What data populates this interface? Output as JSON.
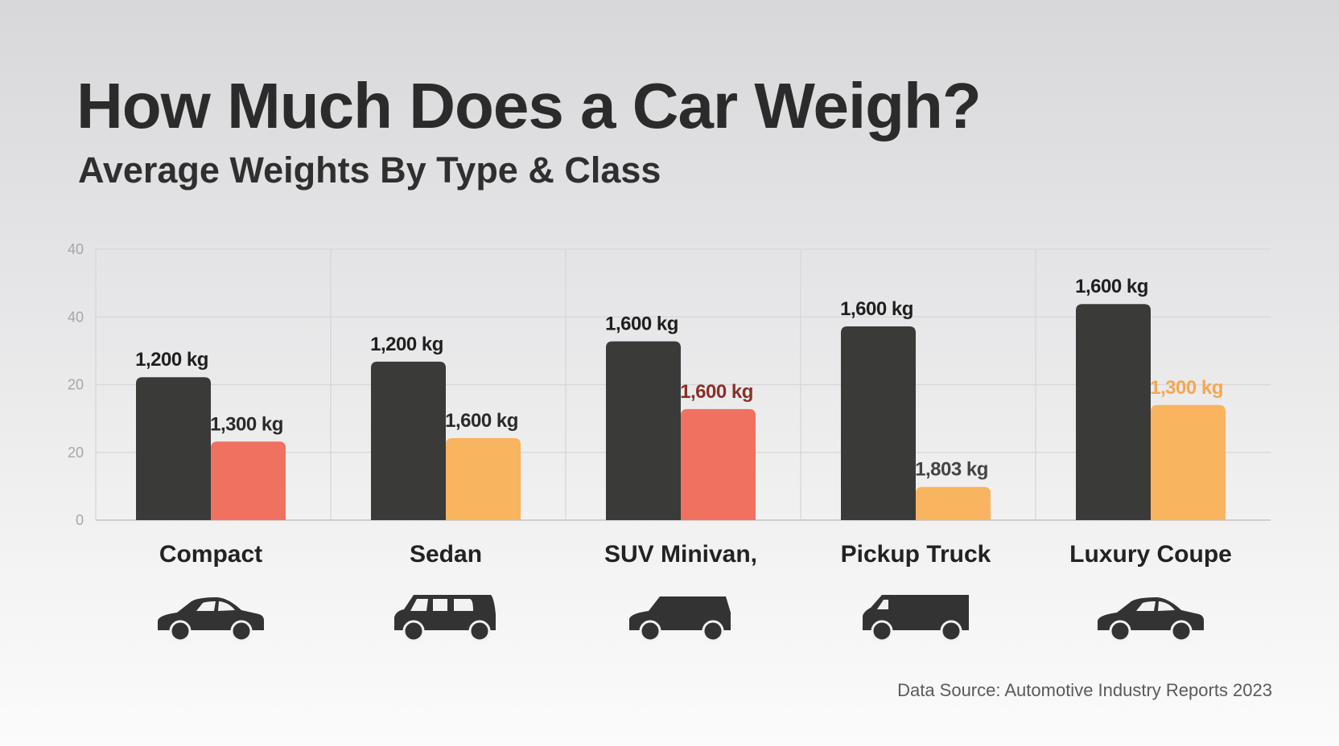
{
  "chart_data": {
    "type": "bar",
    "title": "How Much Does a Car Weigh?",
    "subtitle": "Average Weights By Type & Class",
    "xlabel": "",
    "ylabel": "",
    "ylim": [
      0,
      40
    ],
    "y_tick_labels": [
      "0",
      "20",
      "20",
      "40",
      "40"
    ],
    "grid": true,
    "categories": [
      "Compact",
      "Sedan",
      "SUV Minivan,",
      "Pickup Truck",
      "Luxury Coupe"
    ],
    "icons": [
      "sedan-car-icon",
      "wagon-car-icon",
      "suv-car-icon",
      "van-icon",
      "sedan-car-icon"
    ],
    "series": [
      {
        "values": [
          21.1,
          23.4,
          26.4,
          28.6,
          31.9
        ],
        "labels": [
          "1,200 kg",
          "1,200 kg",
          "1,600 kg",
          "1,600 kg",
          "1,600 kg"
        ],
        "colors": [
          "#3a3a39",
          "#3a3a39",
          "#3a3a39",
          "#3a3a39",
          "#3a3a39"
        ],
        "label_colors": [
          "#1f1f1f",
          "#1f1f1f",
          "#1f1f1f",
          "#1f1f1f",
          "#1f1f1f"
        ]
      },
      {
        "values": [
          11.6,
          12.1,
          16.4,
          4.9,
          17.0
        ],
        "labels": [
          "1,300 kg",
          "1,600 kg",
          "1,600 kg",
          "1,803 kg",
          "1,300 kg"
        ],
        "colors": [
          "#f07160",
          "#f8b45e",
          "#f07160",
          "#f8b45e",
          "#f8b45e"
        ],
        "label_colors": [
          "#2a2a2a",
          "#2a2a2a",
          "#8a3026",
          "#444444",
          "#f5a84e"
        ]
      }
    ],
    "source": "Data Source: Automotive Industry Reports 2023"
  }
}
